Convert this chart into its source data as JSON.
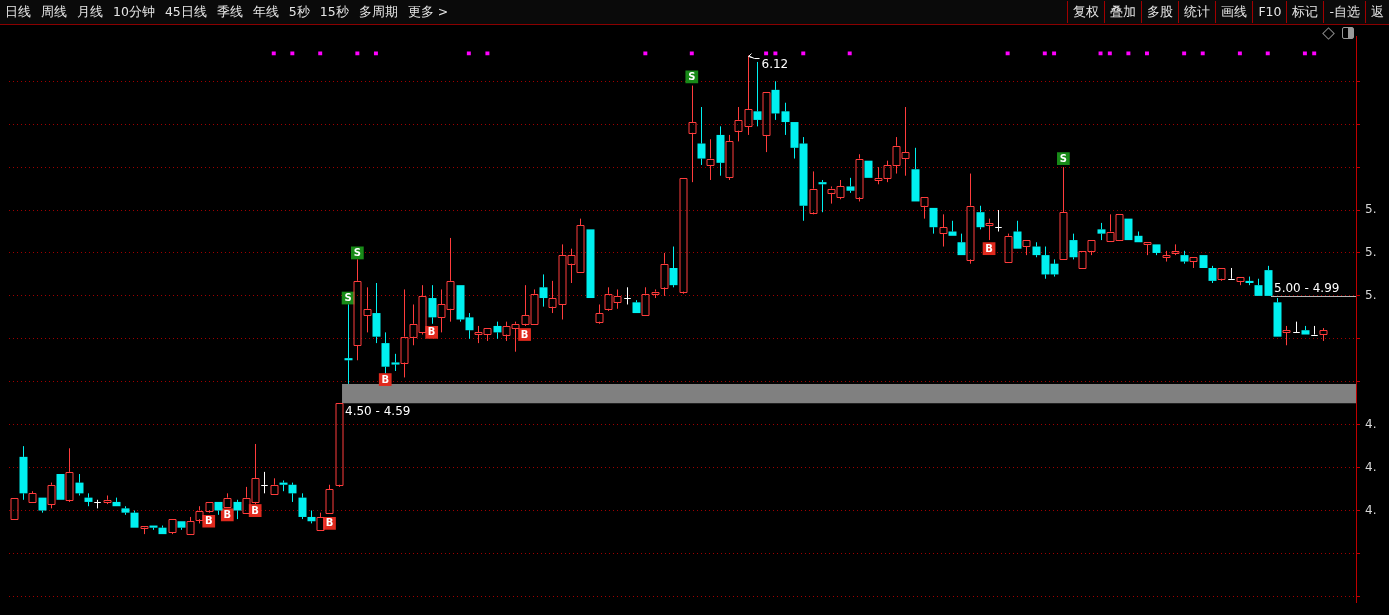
{
  "chart_data": {
    "type": "candlestick",
    "tick_labels": "y",
    "grid": "y",
    "legend": false,
    "marker": "square",
    "categories": [
      null,
      null,
      null,
      null,
      null,
      null,
      null,
      null,
      null,
      null,
      null,
      null,
      null,
      null,
      null,
      null,
      null,
      null,
      null,
      null,
      null,
      null,
      null,
      null,
      null,
      null,
      null,
      null,
      null,
      null,
      null,
      null,
      null,
      null,
      null,
      null,
      null,
      null,
      null,
      null,
      null,
      null,
      null,
      null,
      null,
      null,
      null,
      null,
      null,
      null,
      null,
      null,
      null,
      null,
      null,
      null,
      null,
      null,
      null,
      null,
      null,
      null,
      null,
      null,
      null,
      null,
      null,
      null,
      null,
      null,
      null,
      null,
      null,
      null,
      null,
      null,
      null,
      null,
      null,
      null,
      null,
      null,
      null,
      null,
      null,
      null,
      null,
      null,
      null,
      null,
      null,
      null,
      null,
      null,
      null,
      null,
      null,
      null,
      null,
      null,
      null,
      null,
      null,
      null,
      null,
      null,
      null,
      null,
      null,
      null,
      null,
      null,
      null,
      null,
      null,
      null,
      null,
      null,
      null,
      null,
      null,
      null,
      null,
      null,
      null,
      null,
      null,
      null,
      null,
      null,
      null,
      null,
      null,
      null,
      null,
      null,
      null,
      null,
      null,
      null,
      null,
      null,
      null,
      null,
      null
    ],
    "ohlc": [
      [
        3.96,
        4.06,
        3.96,
        4.06
      ],
      [
        4.25,
        4.3,
        4.05,
        4.08
      ],
      [
        4.04,
        4.09,
        4.04,
        4.08
      ],
      [
        4.06,
        4.06,
        3.99,
        4.0
      ],
      [
        4.03,
        4.13,
        4.01,
        4.12
      ],
      [
        4.17,
        4.17,
        4.05,
        4.05
      ],
      [
        4.05,
        4.29,
        4.04,
        4.18
      ],
      [
        4.13,
        4.17,
        4.07,
        4.08
      ],
      [
        4.06,
        4.08,
        4.02,
        4.04
      ],
      [
        4.04,
        4.05,
        4.01,
        4.04
      ],
      [
        4.04,
        4.07,
        4.03,
        4.05
      ],
      [
        4.04,
        4.06,
        4.02,
        4.02
      ],
      [
        4.01,
        4.02,
        3.98,
        3.99
      ],
      [
        3.99,
        4.0,
        3.92,
        3.92
      ],
      [
        3.92,
        3.93,
        3.89,
        3.93
      ],
      [
        3.93,
        3.93,
        3.91,
        3.92
      ],
      [
        3.92,
        3.93,
        3.89,
        3.89
      ],
      [
        3.9,
        3.96,
        3.89,
        3.96
      ],
      [
        3.95,
        3.95,
        3.91,
        3.92
      ],
      [
        3.89,
        3.97,
        3.89,
        3.95
      ],
      [
        3.96,
        4.02,
        3.94,
        4.0
      ],
      [
        4.0,
        4.04,
        3.99,
        4.04
      ],
      [
        4.04,
        4.04,
        3.98,
        4.0
      ],
      [
        4.02,
        4.08,
        4.02,
        4.06
      ],
      [
        4.04,
        4.05,
        3.96,
        4.0
      ],
      [
        3.99,
        4.11,
        3.99,
        4.06
      ],
      [
        4.04,
        4.31,
        4.03,
        4.15
      ],
      [
        4.12,
        4.18,
        4.08,
        4.12
      ],
      [
        4.08,
        4.15,
        4.08,
        4.12
      ],
      [
        4.13,
        4.14,
        4.09,
        4.12
      ],
      [
        4.12,
        4.13,
        4.04,
        4.08
      ],
      [
        4.06,
        4.08,
        3.96,
        3.97
      ],
      [
        3.97,
        4.0,
        3.94,
        3.95
      ],
      [
        3.91,
        3.99,
        3.91,
        3.97
      ],
      [
        3.99,
        4.12,
        3.99,
        4.1
      ],
      [
        4.12,
        4.5,
        4.11,
        4.5
      ],
      [
        4.71,
        4.96,
        4.59,
        4.7
      ],
      [
        4.77,
        5.17,
        4.7,
        5.07
      ],
      [
        4.91,
        5.04,
        4.83,
        4.94
      ],
      [
        4.92,
        5.06,
        4.78,
        4.81
      ],
      [
        4.78,
        4.83,
        4.64,
        4.67
      ],
      [
        4.69,
        4.73,
        4.65,
        4.68
      ],
      [
        4.69,
        5.03,
        4.62,
        4.81
      ],
      [
        4.81,
        4.96,
        4.77,
        4.87
      ],
      [
        4.83,
        5.05,
        4.82,
        5.0
      ],
      [
        4.99,
        5.05,
        4.87,
        4.9
      ],
      [
        4.9,
        5.03,
        4.83,
        4.96
      ],
      [
        4.94,
        5.27,
        4.88,
        5.07
      ],
      [
        5.05,
        5.05,
        4.88,
        4.89
      ],
      [
        4.9,
        4.92,
        4.8,
        4.84
      ],
      [
        4.82,
        4.86,
        4.78,
        4.83
      ],
      [
        4.82,
        4.85,
        4.79,
        4.85
      ],
      [
        4.86,
        4.88,
        4.8,
        4.83
      ],
      [
        4.82,
        4.88,
        4.79,
        4.86
      ],
      [
        4.85,
        4.88,
        4.74,
        4.87
      ],
      [
        4.87,
        5.05,
        4.86,
        4.91
      ],
      [
        4.87,
        5.03,
        4.87,
        5.01
      ],
      [
        5.04,
        5.1,
        4.95,
        4.99
      ],
      [
        4.95,
        5.07,
        4.92,
        4.99
      ],
      [
        4.96,
        5.24,
        4.89,
        5.19
      ],
      [
        5.15,
        5.22,
        5.06,
        5.19
      ],
      [
        5.11,
        5.36,
        5.11,
        5.33
      ],
      [
        5.31,
        5.31,
        4.99,
        4.99
      ],
      [
        4.88,
        4.96,
        4.87,
        4.92
      ],
      [
        4.94,
        5.04,
        4.93,
        5.01
      ],
      [
        4.97,
        5.03,
        4.94,
        5.0
      ],
      [
        4.99,
        5.04,
        4.96,
        4.99
      ],
      [
        4.97,
        4.98,
        4.92,
        4.92
      ],
      [
        4.91,
        5.04,
        4.91,
        5.01
      ],
      [
        5.01,
        5.03,
        4.99,
        5.02
      ],
      [
        5.04,
        5.2,
        5.0,
        5.15
      ],
      [
        5.13,
        5.23,
        5.04,
        5.05
      ],
      [
        5.02,
        5.55,
        5.01,
        5.55
      ],
      [
        5.76,
        5.98,
        5.53,
        5.81
      ],
      [
        5.71,
        5.88,
        5.61,
        5.64
      ],
      [
        5.61,
        5.73,
        5.54,
        5.64
      ],
      [
        5.75,
        5.79,
        5.56,
        5.62
      ],
      [
        5.55,
        5.75,
        5.54,
        5.72
      ],
      [
        5.77,
        5.88,
        5.72,
        5.82
      ],
      [
        5.79,
        6.12,
        5.75,
        5.87
      ],
      [
        5.86,
        6.09,
        5.79,
        5.82
      ],
      [
        5.75,
        5.95,
        5.67,
        5.95
      ],
      [
        5.96,
        6.0,
        5.82,
        5.85
      ],
      [
        5.86,
        5.9,
        5.75,
        5.81
      ],
      [
        5.81,
        5.81,
        5.64,
        5.69
      ],
      [
        5.71,
        5.74,
        5.35,
        5.42
      ],
      [
        5.39,
        5.58,
        5.38,
        5.5
      ],
      [
        5.53,
        5.54,
        5.39,
        5.52
      ],
      [
        5.48,
        5.51,
        5.43,
        5.5
      ],
      [
        5.46,
        5.54,
        5.45,
        5.51
      ],
      [
        5.51,
        5.55,
        5.48,
        5.49
      ],
      [
        5.46,
        5.66,
        5.44,
        5.64
      ],
      [
        5.63,
        5.63,
        5.55,
        5.55
      ],
      [
        5.54,
        5.6,
        5.52,
        5.55
      ],
      [
        5.55,
        5.63,
        5.53,
        5.61
      ],
      [
        5.61,
        5.74,
        5.57,
        5.7
      ],
      [
        5.64,
        5.88,
        5.56,
        5.67
      ],
      [
        5.59,
        5.69,
        5.44,
        5.44
      ],
      [
        5.42,
        5.46,
        5.36,
        5.46
      ],
      [
        5.41,
        5.41,
        5.29,
        5.32
      ],
      [
        5.29,
        5.38,
        5.23,
        5.32
      ],
      [
        5.3,
        5.35,
        5.28,
        5.28
      ],
      [
        5.25,
        5.29,
        5.19,
        5.19
      ],
      [
        5.17,
        5.57,
        5.15,
        5.42
      ],
      [
        5.39,
        5.42,
        5.31,
        5.32
      ],
      [
        5.33,
        5.36,
        5.26,
        5.34
      ],
      [
        5.32,
        5.4,
        5.3,
        5.32
      ],
      [
        5.16,
        5.29,
        5.16,
        5.28
      ],
      [
        5.3,
        5.35,
        5.22,
        5.22
      ],
      [
        5.23,
        5.26,
        5.19,
        5.26
      ],
      [
        5.23,
        5.25,
        5.18,
        5.19
      ],
      [
        5.19,
        5.23,
        5.08,
        5.1
      ],
      [
        5.15,
        5.17,
        5.09,
        5.1
      ],
      [
        5.17,
        5.6,
        5.17,
        5.39
      ],
      [
        5.26,
        5.29,
        5.17,
        5.18
      ],
      [
        5.13,
        5.21,
        5.13,
        5.21
      ],
      [
        5.21,
        5.26,
        5.19,
        5.26
      ],
      [
        5.31,
        5.34,
        5.26,
        5.29
      ],
      [
        5.26,
        5.38,
        5.26,
        5.3
      ],
      [
        5.26,
        5.38,
        5.26,
        5.38
      ],
      [
        5.36,
        5.36,
        5.26,
        5.26
      ],
      [
        5.28,
        5.3,
        5.25,
        5.25
      ],
      [
        5.24,
        5.25,
        5.19,
        5.25
      ],
      [
        5.24,
        5.24,
        5.19,
        5.2
      ],
      [
        5.18,
        5.21,
        5.16,
        5.19
      ],
      [
        5.2,
        5.24,
        5.19,
        5.21
      ],
      [
        5.19,
        5.21,
        5.15,
        5.16
      ],
      [
        5.16,
        5.18,
        5.13,
        5.18
      ],
      [
        5.19,
        5.19,
        5.13,
        5.13
      ],
      [
        5.13,
        5.14,
        5.06,
        5.07
      ],
      [
        5.08,
        5.13,
        5.07,
        5.13
      ],
      [
        5.08,
        5.13,
        5.08,
        5.08
      ],
      [
        5.07,
        5.09,
        5.05,
        5.09
      ],
      [
        5.07,
        5.09,
        5.05,
        5.06
      ],
      [
        5.05,
        5.08,
        5.0,
        5.0
      ],
      [
        5.12,
        5.14,
        5.0,
        5.0
      ],
      [
        4.97,
        4.99,
        4.81,
        4.81
      ],
      [
        4.83,
        4.86,
        4.77,
        4.84
      ],
      [
        4.83,
        4.88,
        4.83,
        4.83
      ],
      [
        4.84,
        4.86,
        4.82,
        4.82
      ],
      [
        4.82,
        4.86,
        4.82,
        4.82
      ],
      [
        4.82,
        4.85,
        4.79,
        4.84
      ],
      null,
      null,
      null
    ],
    "colors": [
      "#ff3c3c",
      "#00f0f0",
      "#ff3c3c",
      "#00f0f0",
      "#ff3c3c",
      "#00f0f0",
      "#ff3c3c",
      "#00f0f0",
      "#00f0f0",
      "#ffffff",
      "#ff3c3c",
      "#00f0f0",
      "#00f0f0",
      "#00f0f0",
      "#ff3c3c",
      "#00f0f0",
      "#00f0f0",
      "#ff3c3c",
      "#00f0f0",
      "#ff3c3c",
      "#ff3c3c",
      "#ff3c3c",
      "#00f0f0",
      "#ff3c3c",
      "#00f0f0",
      "#ff3c3c",
      "#ff3c3c",
      "#ffffff",
      "#ff3c3c",
      "#00f0f0",
      "#00f0f0",
      "#00f0f0",
      "#00f0f0",
      "#ff3c3c",
      "#ff3c3c",
      "#ff3c3c",
      "#00f0f0",
      "#ff3c3c",
      "#ff3c3c",
      "#00f0f0",
      "#00f0f0",
      "#00f0f0",
      "#ff3c3c",
      "#ff3c3c",
      "#ff3c3c",
      "#00f0f0",
      "#ff3c3c",
      "#ff3c3c",
      "#00f0f0",
      "#00f0f0",
      "#ff3c3c",
      "#ff3c3c",
      "#00f0f0",
      "#ff3c3c",
      "#ff3c3c",
      "#ff3c3c",
      "#ff3c3c",
      "#00f0f0",
      "#ff3c3c",
      "#ff3c3c",
      "#ff3c3c",
      "#ff3c3c",
      "#00f0f0",
      "#ff3c3c",
      "#ff3c3c",
      "#ff3c3c",
      "#ffffff",
      "#00f0f0",
      "#ff3c3c",
      "#ff3c3c",
      "#ff3c3c",
      "#00f0f0",
      "#ff3c3c",
      "#ff3c3c",
      "#00f0f0",
      "#ff3c3c",
      "#00f0f0",
      "#ff3c3c",
      "#ff3c3c",
      "#ff3c3c",
      "#00f0f0",
      "#ff3c3c",
      "#00f0f0",
      "#00f0f0",
      "#00f0f0",
      "#00f0f0",
      "#ff3c3c",
      "#00f0f0",
      "#ff3c3c",
      "#ff3c3c",
      "#00f0f0",
      "#ff3c3c",
      "#00f0f0",
      "#ff3c3c",
      "#ff3c3c",
      "#ff3c3c",
      "#ff3c3c",
      "#00f0f0",
      "#ff3c3c",
      "#00f0f0",
      "#ff3c3c",
      "#00f0f0",
      "#00f0f0",
      "#ff3c3c",
      "#00f0f0",
      "#ff3c3c",
      "#ffffff",
      "#ff3c3c",
      "#00f0f0",
      "#ff3c3c",
      "#00f0f0",
      "#00f0f0",
      "#00f0f0",
      "#ff3c3c",
      "#00f0f0",
      "#ff3c3c",
      "#ff3c3c",
      "#00f0f0",
      "#ff3c3c",
      "#ff3c3c",
      "#00f0f0",
      "#00f0f0",
      "#ff3c3c",
      "#00f0f0",
      "#ff3c3c",
      "#ff3c3c",
      "#00f0f0",
      "#ff3c3c",
      "#00f0f0",
      "#00f0f0",
      "#ff3c3c",
      "#ffffff",
      "#ff3c3c",
      "#00f0f0",
      "#00f0f0",
      "#00f0f0",
      "#00f0f0",
      "#ff3c3c",
      "#ffffff",
      "#00f0f0",
      "#ffffff",
      "#ff3c3c",
      null,
      null,
      null
    ],
    "series": [
      {
        "type": "scatter",
        "name": "B",
        "color": "#e02a1e",
        "values": [
          null,
          null,
          null,
          null,
          null,
          null,
          null,
          null,
          null,
          null,
          null,
          null,
          null,
          null,
          null,
          null,
          null,
          null,
          null,
          null,
          null,
          3.95,
          null,
          3.98,
          null,
          null,
          4.0,
          null,
          null,
          null,
          null,
          null,
          null,
          null,
          3.94,
          null,
          null,
          null,
          null,
          null,
          4.61,
          null,
          null,
          null,
          null,
          4.83,
          null,
          null,
          null,
          null,
          null,
          null,
          null,
          null,
          null,
          4.82,
          null,
          null,
          null,
          null,
          null,
          null,
          null,
          null,
          null,
          null,
          null,
          null,
          null,
          null,
          null,
          null,
          null,
          null,
          null,
          null,
          null,
          null,
          null,
          null,
          null,
          null,
          null,
          null,
          null,
          null,
          null,
          null,
          null,
          null,
          null,
          null,
          null,
          null,
          null,
          null,
          null,
          null,
          null,
          null,
          null,
          null,
          null,
          null,
          null,
          5.22,
          null,
          null,
          null,
          null,
          null,
          null,
          null,
          null,
          null,
          null,
          null,
          null,
          null,
          null,
          null,
          null,
          null,
          null,
          null,
          null,
          null,
          null,
          null,
          null,
          null,
          null,
          null,
          null,
          null,
          null,
          null,
          null,
          null,
          null,
          null,
          null,
          null,
          null,
          null
        ]
      },
      {
        "type": "scatter",
        "name": "S",
        "color": "#188a18",
        "values": [
          null,
          null,
          null,
          null,
          null,
          null,
          null,
          null,
          null,
          null,
          null,
          null,
          null,
          null,
          null,
          null,
          null,
          null,
          null,
          null,
          null,
          null,
          null,
          null,
          null,
          null,
          null,
          null,
          null,
          null,
          null,
          null,
          null,
          null,
          null,
          null,
          4.99,
          5.2,
          null,
          null,
          null,
          null,
          null,
          null,
          null,
          null,
          null,
          null,
          null,
          null,
          null,
          null,
          null,
          null,
          null,
          null,
          null,
          null,
          null,
          null,
          null,
          null,
          null,
          null,
          null,
          null,
          null,
          null,
          null,
          null,
          null,
          null,
          null,
          6.02,
          null,
          null,
          null,
          null,
          null,
          null,
          null,
          null,
          null,
          null,
          null,
          null,
          null,
          null,
          null,
          null,
          null,
          null,
          null,
          null,
          null,
          null,
          null,
          null,
          null,
          null,
          null,
          null,
          null,
          null,
          null,
          null,
          null,
          null,
          null,
          null,
          null,
          null,
          null,
          5.64,
          null,
          null,
          null,
          null,
          null,
          null,
          null,
          null,
          null,
          null,
          null,
          null,
          null,
          null,
          null,
          null,
          null,
          null,
          null,
          null,
          null,
          null,
          null,
          null,
          null,
          null,
          null,
          null,
          null,
          null,
          null
        ]
      },
      {
        "type": "scatter",
        "color": "#ff00ff",
        "values": [
          null,
          null,
          null,
          null,
          null,
          null,
          null,
          null,
          null,
          null,
          null,
          null,
          null,
          null,
          null,
          null,
          null,
          null,
          null,
          null,
          null,
          null,
          null,
          null,
          null,
          null,
          null,
          null,
          6.13,
          null,
          6.13,
          null,
          null,
          6.13,
          null,
          null,
          null,
          6.13,
          null,
          6.13,
          null,
          null,
          null,
          null,
          null,
          null,
          null,
          null,
          null,
          6.13,
          null,
          6.13,
          null,
          null,
          null,
          null,
          null,
          null,
          null,
          null,
          null,
          null,
          null,
          null,
          null,
          null,
          null,
          null,
          6.13,
          null,
          null,
          null,
          null,
          6.13,
          null,
          null,
          null,
          null,
          null,
          null,
          null,
          6.13,
          6.13,
          null,
          null,
          6.13,
          null,
          null,
          null,
          null,
          6.13,
          null,
          null,
          null,
          null,
          null,
          null,
          null,
          null,
          null,
          null,
          null,
          null,
          null,
          null,
          null,
          null,
          6.13,
          null,
          null,
          null,
          6.13,
          6.13,
          null,
          null,
          null,
          null,
          6.13,
          6.13,
          null,
          6.13,
          null,
          6.13,
          null,
          null,
          null,
          6.13,
          null,
          6.13,
          null,
          null,
          null,
          6.13,
          null,
          null,
          6.13,
          null,
          null,
          null,
          6.13,
          6.13,
          null,
          null,
          null,
          null
        ]
      }
    ],
    "ylim": [
      3.57,
      6.21
    ],
    "yticks": [
      {
        "value": 3.6,
        "label": null
      },
      {
        "value": 3.8,
        "label": null
      },
      {
        "value": 4.0,
        "label": "4."
      },
      {
        "value": 4.2,
        "label": "4."
      },
      {
        "value": 4.4,
        "label": "4."
      },
      {
        "value": 4.6,
        "label": null
      },
      {
        "value": 4.8,
        "label": null
      },
      {
        "value": 5.0,
        "label": "5."
      },
      {
        "value": 5.2,
        "label": "5."
      },
      {
        "value": 5.4,
        "label": "5."
      },
      {
        "value": 5.6,
        "label": null
      },
      {
        "value": 5.8,
        "label": null
      },
      {
        "value": 6.0,
        "label": null
      }
    ],
    "bands": [
      {
        "axis": "y",
        "from": 4.5,
        "to": 4.59,
        "label": "4.50 - 4.59",
        "color": "#808080"
      }
    ],
    "ref_lines": [
      {
        "axis": "y",
        "value": 5.0,
        "label": "5.00 - 4.99",
        "color": "#b4b4b4"
      }
    ],
    "annotations": [
      "日线",
      "周线",
      "月线",
      "10分钟",
      "45日线",
      "季线",
      "年线",
      "5秒",
      "15秒",
      "多周期",
      "更多 >",
      "复权",
      "叠加",
      "多股",
      "统计",
      "画线",
      "F10",
      "标记",
      "-自选",
      "返",
      {
        "text": "6.12",
        "y": 6.12
      }
    ]
  }
}
